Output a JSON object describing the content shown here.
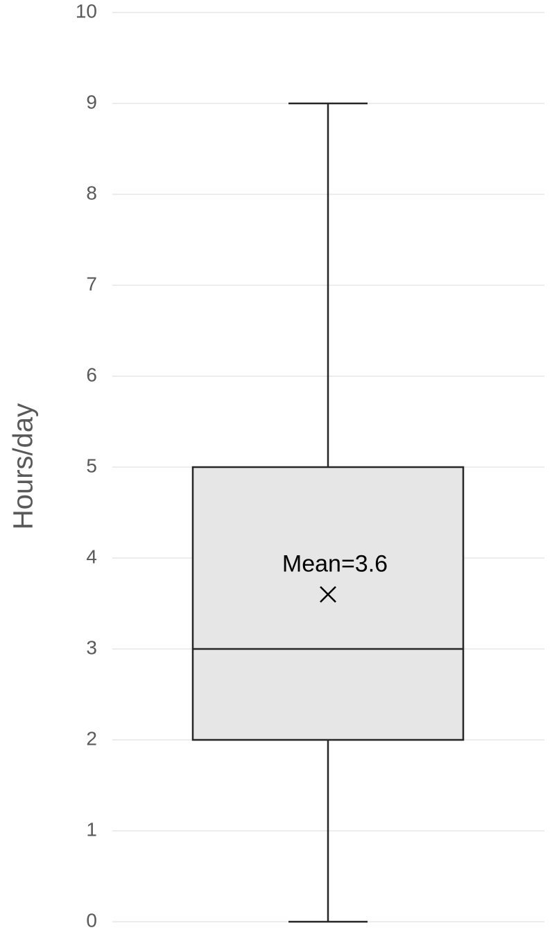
{
  "chart_data": {
    "type": "box",
    "ylabel": "Hours/day",
    "boxes": [
      {
        "min": 0,
        "q1": 2,
        "median": 3,
        "q3": 5,
        "max": 9,
        "mean": 3.6,
        "mean_label": "Mean=3.6"
      }
    ],
    "color": "#e7e6e6",
    "edge_color": "#262626",
    "ylim": [
      0,
      10
    ],
    "yticks": [
      0,
      1,
      2,
      3,
      4,
      5,
      6,
      7,
      8,
      9,
      10
    ],
    "grid": true
  }
}
